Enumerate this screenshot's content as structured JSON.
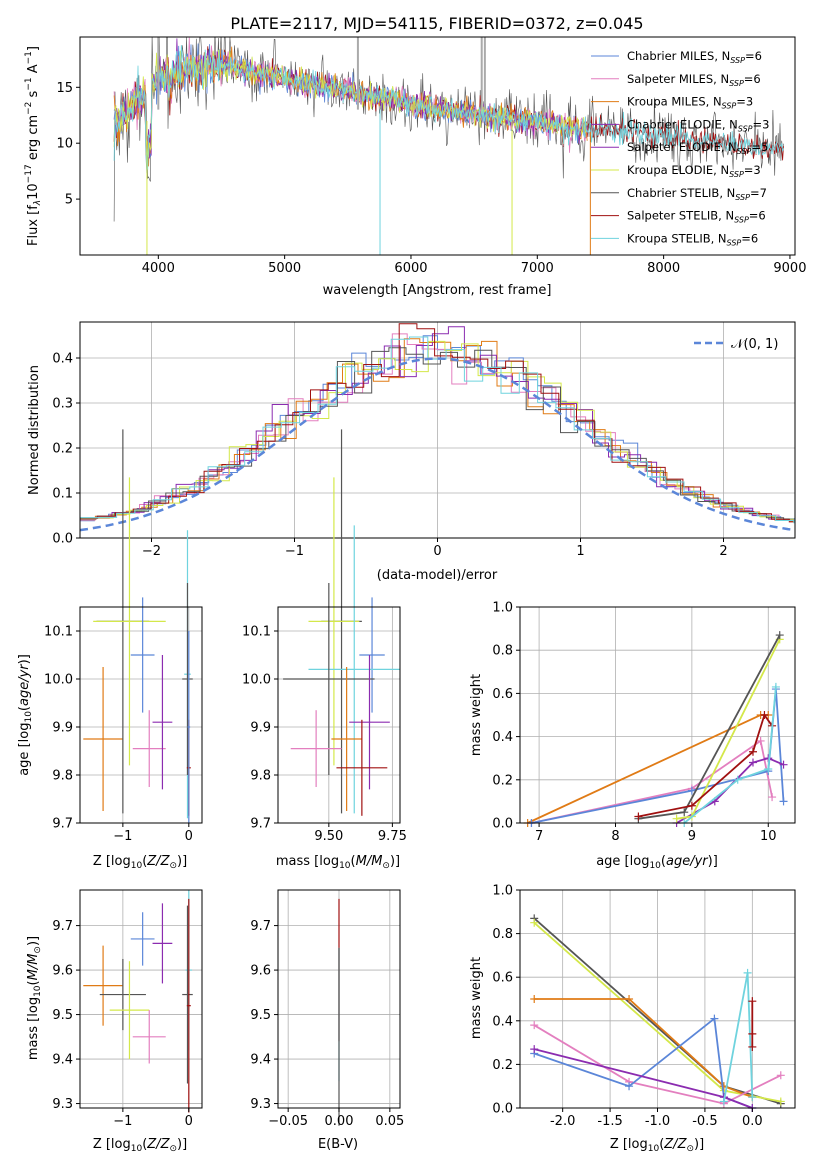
{
  "figure": {
    "title": "PLATE=2117, MJD=54115, FIBERID=0372, z=0.045"
  },
  "colors": {
    "chabrier_miles": "#5b86d8",
    "salpeter_miles": "#e37fbf",
    "kroupa_miles": "#e07b16",
    "chabrier_elodie": "#8b2cb0",
    "salpeter_elodie": "#8b2cb0",
    "kroupa_elodie": "#d4e84a",
    "chabrier_stelib": "#555555",
    "salpeter_stelib": "#a01010",
    "kroupa_stelib": "#6fd3de",
    "normal_curve": "#5b86d8",
    "grid": "#b0b0b0"
  },
  "chart_data": [
    {
      "type": "line",
      "panel": "spectrum",
      "xlabel": "wavelength [Angstrom, rest frame]",
      "ylabel": "Flux [f_λ 10^-17 erg cm^-2 s^-1 A^-1]",
      "xlim": [
        3380,
        9040
      ],
      "ylim": [
        0,
        19.5
      ],
      "xticks": [
        4000,
        5000,
        6000,
        7000,
        8000,
        9000
      ],
      "yticks": [
        5,
        10,
        15
      ],
      "grid": false,
      "legend_position": "right",
      "series": [
        {
          "name": "Chabrier MILES, N_SSP=6",
          "key": "chabrier_miles"
        },
        {
          "name": "Salpeter MILES, N_SSP=6",
          "key": "salpeter_miles"
        },
        {
          "name": "Kroupa MILES, N_SSP=3",
          "key": "kroupa_miles"
        },
        {
          "name": "Chabrier ELODIE, N_SSP=3",
          "key": "chabrier_elodie"
        },
        {
          "name": "Salpeter ELODIE, N_SSP=5",
          "key": "salpeter_elodie"
        },
        {
          "name": "Kroupa ELODIE, N_SSP=3",
          "key": "kroupa_elodie"
        },
        {
          "name": "Chabrier STELIB, N_SSP=7",
          "key": "chabrier_stelib"
        },
        {
          "name": "Salpeter STELIB, N_SSP=6",
          "key": "salpeter_stelib"
        },
        {
          "name": "Kroupa STELIB, N_SSP=6",
          "key": "kroupa_stelib"
        }
      ],
      "continuum": [
        [
          3650,
          11.5
        ],
        [
          3700,
          12
        ],
        [
          3800,
          13.5
        ],
        [
          3900,
          14.5
        ],
        [
          4000,
          16
        ],
        [
          4100,
          16.5
        ],
        [
          4300,
          16.8
        ],
        [
          4500,
          17
        ],
        [
          4800,
          16.3
        ],
        [
          5000,
          15.7
        ],
        [
          5200,
          15.3
        ],
        [
          5500,
          14.8
        ],
        [
          5800,
          14
        ],
        [
          6000,
          13.5
        ],
        [
          6300,
          13
        ],
        [
          6500,
          12.6
        ],
        [
          6700,
          12.3
        ],
        [
          6900,
          12
        ],
        [
          7100,
          11.7
        ],
        [
          7400,
          11.3
        ],
        [
          7700,
          11
        ],
        [
          8000,
          10.7
        ],
        [
          8300,
          10.3
        ],
        [
          8600,
          9.8
        ],
        [
          8800,
          9.5
        ],
        [
          8950,
          9.5
        ]
      ]
    },
    {
      "type": "step",
      "panel": "residuals",
      "xlabel": "(data-model)/error",
      "ylabel": "Normed distribution",
      "xlim": [
        -2.5,
        2.5
      ],
      "ylim": [
        0,
        0.48
      ],
      "xticks": [
        -2,
        -1,
        0,
        1,
        2
      ],
      "yticks": [
        0.0,
        0.1,
        0.2,
        0.3,
        0.4
      ],
      "grid": true,
      "legend": "N(0,1)",
      "legend_position": "top-right"
    },
    {
      "type": "errorbar",
      "panel": "age-vs-Z",
      "xlabel": "Z [log10(Z/Z⊙)]",
      "ylabel": "age [log10(age/yr)]",
      "xlim": [
        -1.65,
        0.2
      ],
      "ylim": [
        9.7,
        10.15
      ],
      "xticks": [
        -1,
        0
      ],
      "yticks": [
        9.7,
        9.8,
        9.9,
        10.0,
        10.1
      ],
      "grid": true,
      "points": [
        {
          "key": "kroupa_miles",
          "x": -1.3,
          "xerr": 0.3,
          "y": 9.875,
          "yerr": 0.15
        },
        {
          "key": "chabrier_stelib",
          "x": -1.0,
          "xerr": 0.4,
          "y": 10.12,
          "yerr": 0.4
        },
        {
          "key": "kroupa_elodie",
          "x": -0.9,
          "xerr": 0.55,
          "y": 10.12,
          "yerr": 0.3
        },
        {
          "key": "chabrier_miles",
          "x": -0.7,
          "xerr": 0.18,
          "y": 10.05,
          "yerr": 0.12
        },
        {
          "key": "salpeter_miles",
          "x": -0.6,
          "xerr": 0.25,
          "y": 9.855,
          "yerr": 0.08
        },
        {
          "key": "chabrier_elodie",
          "x": -0.4,
          "xerr": 0.15,
          "y": 9.91,
          "yerr": 0.14
        },
        {
          "key": "kroupa_stelib",
          "x": -0.02,
          "xerr": 0.05,
          "y": 10.01,
          "yerr": 0.3
        },
        {
          "key": "chabrier_stelib",
          "x": -0.02,
          "xerr": 0.08,
          "y": 10.0,
          "yerr": 0.2
        },
        {
          "key": "salpeter_stelib",
          "x": 0.0,
          "xerr": 0.03,
          "y": 9.815,
          "yerr": 0.1
        },
        {
          "key": "chabrier_miles",
          "x": 0.0,
          "xerr": 0.02,
          "y": 9.9,
          "yerr": 0.2
        }
      ]
    },
    {
      "type": "errorbar",
      "panel": "age-vs-mass",
      "xlabel": "mass [log10(M/M⊙)]",
      "xlim": [
        9.3,
        9.78
      ],
      "ylim": [
        9.7,
        10.15
      ],
      "xticks": [
        9.5,
        9.75
      ],
      "yticks": [
        9.7,
        9.8,
        9.9,
        10.0,
        10.1
      ],
      "grid": true,
      "points": [
        {
          "key": "chabrier_stelib",
          "x": 9.55,
          "xerr": 0.08,
          "y": 10.12,
          "yerr": 0.4
        },
        {
          "key": "kroupa_elodie",
          "x": 9.52,
          "xerr": 0.1,
          "y": 10.12,
          "yerr": 0.3
        },
        {
          "key": "chabrier_miles",
          "x": 9.67,
          "xerr": 0.05,
          "y": 10.05,
          "yerr": 0.12
        },
        {
          "key": "kroupa_stelib",
          "x": 9.6,
          "xerr": 0.18,
          "y": 10.02,
          "yerr": 0.3
        },
        {
          "key": "chabrier_stelib",
          "x": 9.5,
          "xerr": 0.18,
          "y": 10.0,
          "yerr": 0.2
        },
        {
          "key": "kroupa_miles",
          "x": 9.57,
          "xerr": 0.06,
          "y": 9.875,
          "yerr": 0.15
        },
        {
          "key": "salpeter_miles",
          "x": 9.45,
          "xerr": 0.1,
          "y": 9.855,
          "yerr": 0.08
        },
        {
          "key": "chabrier_elodie",
          "x": 9.66,
          "xerr": 0.08,
          "y": 9.91,
          "yerr": 0.14
        },
        {
          "key": "salpeter_stelib",
          "x": 9.63,
          "xerr": 0.1,
          "y": 9.815,
          "yerr": 0.1
        }
      ]
    },
    {
      "type": "line",
      "panel": "weight-vs-age",
      "xlabel": "age [log10(age/yr)]",
      "ylabel": "mass weight",
      "xlim": [
        6.75,
        10.35
      ],
      "ylim": [
        0,
        1.0
      ],
      "xticks": [
        7,
        8,
        9,
        10
      ],
      "yticks": [
        0.0,
        0.2,
        0.4,
        0.6,
        0.8,
        1.0
      ],
      "grid": true,
      "series": [
        {
          "key": "kroupa_miles",
          "points": [
            [
              6.85,
              0.0
            ],
            [
              9.9,
              0.5
            ],
            [
              10.0,
              0.5
            ]
          ]
        },
        {
          "key": "salpeter_miles",
          "points": [
            [
              6.9,
              0.0
            ],
            [
              9.0,
              0.16
            ],
            [
              9.9,
              0.38
            ],
            [
              10.05,
              0.12
            ]
          ]
        },
        {
          "key": "chabrier_miles",
          "points": [
            [
              6.9,
              0.0
            ],
            [
              9.0,
              0.15
            ],
            [
              10.0,
              0.24
            ],
            [
              10.1,
              0.62
            ],
            [
              10.2,
              0.1
            ]
          ]
        },
        {
          "key": "chabrier_elodie",
          "points": [
            [
              8.8,
              0.0
            ],
            [
              9.3,
              0.1
            ],
            [
              9.8,
              0.28
            ],
            [
              10.0,
              0.3
            ],
            [
              10.2,
              0.27
            ]
          ]
        },
        {
          "key": "kroupa_elodie",
          "points": [
            [
              8.8,
              0.02
            ],
            [
              9.0,
              0.03
            ],
            [
              10.15,
              0.85
            ]
          ]
        },
        {
          "key": "chabrier_stelib",
          "points": [
            [
              8.3,
              0.02
            ],
            [
              8.9,
              0.05
            ],
            [
              10.15,
              0.87
            ]
          ]
        },
        {
          "key": "salpeter_stelib",
          "points": [
            [
              8.3,
              0.03
            ],
            [
              9.0,
              0.08
            ],
            [
              9.8,
              0.33
            ],
            [
              9.95,
              0.5
            ],
            [
              10.05,
              0.45
            ]
          ]
        },
        {
          "key": "kroupa_stelib",
          "points": [
            [
              8.9,
              0.0
            ],
            [
              9.6,
              0.2
            ],
            [
              10.0,
              0.25
            ],
            [
              10.1,
              0.63
            ]
          ]
        }
      ]
    },
    {
      "type": "errorbar",
      "panel": "mass-vs-Z",
      "xlabel": "Z [log10(Z/Z⊙)]",
      "ylabel": "mass [log10(M/M⊙)]",
      "xlim": [
        -1.65,
        0.2
      ],
      "ylim": [
        9.29,
        9.78
      ],
      "xticks": [
        -1,
        0
      ],
      "yticks": [
        9.3,
        9.4,
        9.5,
        9.6,
        9.7
      ],
      "grid": true,
      "points": [
        {
          "key": "kroupa_miles",
          "x": -1.3,
          "xerr": 0.3,
          "y": 9.565,
          "yerr": 0.09
        },
        {
          "key": "chabrier_stelib",
          "x": -1.0,
          "xerr": 0.35,
          "y": 9.545,
          "yerr": 0.08
        },
        {
          "key": "kroupa_elodie",
          "x": -0.9,
          "xerr": 0.3,
          "y": 9.51,
          "yerr": 0.11
        },
        {
          "key": "chabrier_miles",
          "x": -0.7,
          "xerr": 0.18,
          "y": 9.67,
          "yerr": 0.06
        },
        {
          "key": "salpeter_miles",
          "x": -0.6,
          "xerr": 0.25,
          "y": 9.45,
          "yerr": 0.06
        },
        {
          "key": "chabrier_elodie",
          "x": -0.4,
          "xerr": 0.15,
          "y": 9.66,
          "yerr": 0.09
        },
        {
          "key": "kroupa_stelib",
          "x": 0.0,
          "xerr": 0.05,
          "y": 9.6,
          "yerr": 0.18
        },
        {
          "key": "chabrier_stelib",
          "x": -0.02,
          "xerr": 0.08,
          "y": 9.545,
          "yerr": 0.2
        },
        {
          "key": "salpeter_stelib",
          "x": 0.0,
          "xerr": 0.03,
          "y": 9.52,
          "yerr": 0.24
        }
      ]
    },
    {
      "type": "errorbar",
      "panel": "mass-vs-ebv",
      "xlabel": "E(B-V)",
      "xlim": [
        -0.06,
        0.06
      ],
      "ylim": [
        9.29,
        9.78
      ],
      "xticks": [
        -0.05,
        0.0,
        0.05
      ],
      "yticks": [
        9.3,
        9.4,
        9.5,
        9.6,
        9.7
      ],
      "grid": true,
      "points": [
        {
          "key": "salpeter_stelib",
          "x": 0.0,
          "xerr": 0.0,
          "y": 9.6,
          "yerr": 0.16
        },
        {
          "key": "kroupa_stelib",
          "x": 0.0,
          "xerr": 0.0,
          "y": 9.5,
          "yerr": 0.15
        },
        {
          "key": "chabrier_stelib",
          "x": 0.0,
          "xerr": 0.0,
          "y": 9.45,
          "yerr": 0.2
        }
      ]
    },
    {
      "type": "line",
      "panel": "weight-vs-Z",
      "xlabel": "Z [log10(Z/Z⊙)]",
      "ylabel": "mass weight",
      "xlim": [
        -2.45,
        0.45
      ],
      "ylim": [
        0,
        1.0
      ],
      "xticks": [
        -2.0,
        -1.5,
        -1.0,
        -0.5,
        0.0
      ],
      "yticks": [
        0.0,
        0.2,
        0.4,
        0.6,
        0.8,
        1.0
      ],
      "grid": true,
      "series": [
        {
          "key": "chabrier_stelib",
          "points": [
            [
              -2.3,
              0.87
            ],
            [
              -0.3,
              0.1
            ],
            [
              0.3,
              0.02
            ]
          ]
        },
        {
          "key": "kroupa_elodie",
          "points": [
            [
              -2.3,
              0.85
            ],
            [
              -0.3,
              0.08
            ],
            [
              0.3,
              0.03
            ]
          ]
        },
        {
          "key": "kroupa_miles",
          "points": [
            [
              -2.3,
              0.5
            ],
            [
              -1.3,
              0.5
            ],
            [
              -0.3,
              0.1
            ],
            [
              0.0,
              0.05
            ]
          ]
        },
        {
          "key": "salpeter_miles",
          "points": [
            [
              -2.3,
              0.38
            ],
            [
              -1.3,
              0.12
            ],
            [
              -0.3,
              0.02
            ],
            [
              0.3,
              0.15
            ]
          ]
        },
        {
          "key": "chabrier_miles",
          "points": [
            [
              -2.3,
              0.25
            ],
            [
              -1.3,
              0.1
            ],
            [
              -0.4,
              0.41
            ],
            [
              -0.3,
              0.05
            ],
            [
              0.0,
              0.0
            ]
          ]
        },
        {
          "key": "chabrier_elodie",
          "points": [
            [
              -2.3,
              0.27
            ],
            [
              -0.3,
              0.05
            ],
            [
              0.0,
              0.0
            ]
          ]
        },
        {
          "key": "kroupa_stelib",
          "points": [
            [
              -0.3,
              0.03
            ],
            [
              -0.05,
              0.62
            ],
            [
              0.0,
              0.05
            ]
          ]
        },
        {
          "key": "salpeter_stelib",
          "points": [
            [
              0.0,
              0.49
            ],
            [
              0.0,
              0.34
            ],
            [
              0.0,
              0.28
            ]
          ]
        }
      ]
    }
  ],
  "labels": {
    "spectrum_ylabel": "Flux [f",
    "spectrum_xlabel": "wavelength [Angstrom, rest frame]",
    "resid_xlabel": "(data-model)/error",
    "resid_ylabel": "Normed distribution",
    "normal_legend": "𝒩(0, 1)",
    "age_ylabel": "age  [log",
    "mass_ylabel": "mass [log",
    "weight_ylabel": "mass weight",
    "z_xlabel": "Z [log",
    "mass_xlabel": "mass [log",
    "age_xlabel": "age  [log",
    "ebv_xlabel": "E(B-V)"
  }
}
